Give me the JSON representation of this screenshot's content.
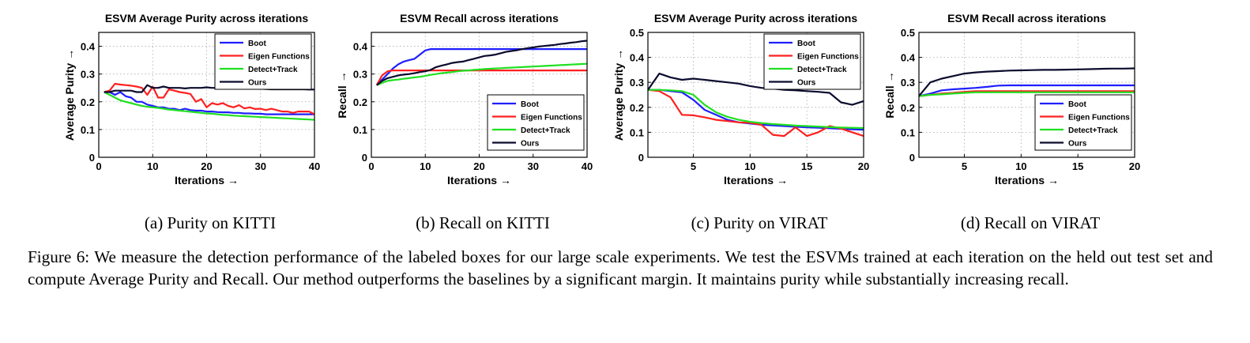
{
  "caption": "Figure 6: We measure the detection performance of the labeled boxes for our large scale experiments. We test the ESVMs trained at each iteration on the held out test set and compute Average Purity and Recall. Our method outperforms the baselines by a significant margin. It maintains purity while substantially increasing recall.",
  "colors": {
    "Boot": "#1f1fff",
    "Eigen Functions": "#ff2020",
    "Detect+Track": "#20e020",
    "Ours": "#0b0b2e"
  },
  "chart_data": [
    {
      "type": "line",
      "title": "ESVM Average Purity across iterations",
      "subcaption": "(a) Purity on KITTI",
      "xlabel": "Iterations →",
      "ylabel": "Average Purity →",
      "xlim": [
        0,
        40
      ],
      "ylim": [
        0,
        0.45
      ],
      "xticks": [
        0,
        10,
        20,
        30,
        40
      ],
      "yticks": [
        0,
        0.1,
        0.2,
        0.3,
        0.4
      ],
      "xtick_labels": [
        "0",
        "10",
        "20",
        "30",
        "40"
      ],
      "ytick_labels": [
        "0",
        "0.1",
        "0.2",
        "0.3",
        "0.4"
      ],
      "grid": true,
      "legend_position": "top-right",
      "x": [
        1,
        2,
        3,
        4,
        5,
        6,
        7,
        8,
        9,
        10,
        11,
        12,
        13,
        14,
        15,
        16,
        17,
        18,
        19,
        20,
        21,
        22,
        23,
        24,
        25,
        26,
        27,
        28,
        29,
        30,
        31,
        32,
        33,
        34,
        35,
        36,
        37,
        38,
        39,
        40
      ],
      "series": [
        {
          "name": "Boot",
          "values": [
            0.235,
            0.235,
            0.225,
            0.235,
            0.22,
            0.215,
            0.2,
            0.2,
            0.19,
            0.185,
            0.18,
            0.18,
            0.175,
            0.175,
            0.17,
            0.175,
            0.17,
            0.168,
            0.168,
            0.165,
            0.165,
            0.163,
            0.162,
            0.162,
            0.16,
            0.16,
            0.158,
            0.158,
            0.157,
            0.157,
            0.155,
            0.155,
            0.155,
            0.155,
            0.155,
            0.155,
            0.155,
            0.155,
            0.155,
            0.155
          ]
        },
        {
          "name": "Eigen Functions",
          "values": [
            0.235,
            0.24,
            0.265,
            0.262,
            0.26,
            0.258,
            0.255,
            0.25,
            0.225,
            0.255,
            0.215,
            0.215,
            0.245,
            0.24,
            0.235,
            0.232,
            0.228,
            0.2,
            0.21,
            0.18,
            0.195,
            0.19,
            0.195,
            0.185,
            0.18,
            0.188,
            0.176,
            0.18,
            0.174,
            0.175,
            0.17,
            0.175,
            0.17,
            0.165,
            0.165,
            0.16,
            0.165,
            0.165,
            0.165,
            0.155
          ]
        },
        {
          "name": "Detect+Track",
          "values": [
            0.235,
            0.225,
            0.215,
            0.205,
            0.2,
            0.195,
            0.19,
            0.185,
            0.182,
            0.18,
            0.178,
            0.175,
            0.172,
            0.17,
            0.168,
            0.166,
            0.164,
            0.162,
            0.16,
            0.158,
            0.157,
            0.155,
            0.153,
            0.152,
            0.15,
            0.149,
            0.148,
            0.147,
            0.146,
            0.145,
            0.144,
            0.143,
            0.142,
            0.141,
            0.14,
            0.139,
            0.138,
            0.137,
            0.136,
            0.135
          ]
        },
        {
          "name": "Ours",
          "values": [
            0.235,
            0.235,
            0.24,
            0.24,
            0.24,
            0.24,
            0.235,
            0.235,
            0.26,
            0.25,
            0.25,
            0.255,
            0.25,
            0.25,
            0.25,
            0.248,
            0.25,
            0.25,
            0.25,
            0.252,
            0.25,
            0.25,
            0.25,
            0.248,
            0.248,
            0.248,
            0.248,
            0.248,
            0.247,
            0.247,
            0.246,
            0.245,
            0.245,
            0.245,
            0.245,
            0.245,
            0.245,
            0.245,
            0.244,
            0.244
          ]
        }
      ]
    },
    {
      "type": "line",
      "title": "ESVM Recall across iterations",
      "subcaption": "(b) Recall on KITTI",
      "xlabel": "Iterations →",
      "ylabel": "Recall →",
      "xlim": [
        0,
        40
      ],
      "ylim": [
        0,
        0.45
      ],
      "xticks": [
        0,
        10,
        20,
        30,
        40
      ],
      "yticks": [
        0,
        0.1,
        0.2,
        0.3,
        0.4
      ],
      "xtick_labels": [
        "0",
        "10",
        "20",
        "30",
        "40"
      ],
      "ytick_labels": [
        "0",
        "0.1",
        "0.2",
        "0.3",
        "0.4"
      ],
      "grid": true,
      "legend_position": "bottom-right",
      "x": [
        1,
        2,
        3,
        4,
        5,
        6,
        7,
        8,
        9,
        10,
        11,
        12,
        13,
        14,
        15,
        16,
        17,
        18,
        19,
        20,
        21,
        22,
        23,
        24,
        25,
        26,
        27,
        28,
        29,
        30,
        31,
        32,
        33,
        34,
        35,
        36,
        37,
        38,
        39,
        40
      ],
      "series": [
        {
          "name": "Boot",
          "values": [
            0.26,
            0.28,
            0.3,
            0.32,
            0.335,
            0.345,
            0.35,
            0.355,
            0.37,
            0.385,
            0.39,
            0.39,
            0.39,
            0.39,
            0.39,
            0.39,
            0.39,
            0.39,
            0.39,
            0.39,
            0.39,
            0.39,
            0.39,
            0.39,
            0.39,
            0.39,
            0.39,
            0.39,
            0.39,
            0.39,
            0.39,
            0.39,
            0.39,
            0.39,
            0.39,
            0.39,
            0.39,
            0.39,
            0.39,
            0.39
          ]
        },
        {
          "name": "Eigen Functions",
          "values": [
            0.26,
            0.295,
            0.31,
            0.313,
            0.313,
            0.313,
            0.313,
            0.313,
            0.313,
            0.313,
            0.313,
            0.313,
            0.313,
            0.313,
            0.313,
            0.313,
            0.313,
            0.313,
            0.313,
            0.313,
            0.313,
            0.313,
            0.313,
            0.313,
            0.313,
            0.313,
            0.313,
            0.313,
            0.313,
            0.313,
            0.313,
            0.313,
            0.313,
            0.313,
            0.313,
            0.313,
            0.313,
            0.313,
            0.313,
            0.313
          ]
        },
        {
          "name": "Detect+Track",
          "values": [
            0.26,
            0.268,
            0.275,
            0.278,
            0.28,
            0.283,
            0.285,
            0.288,
            0.29,
            0.293,
            0.297,
            0.3,
            0.303,
            0.305,
            0.307,
            0.31,
            0.312,
            0.313,
            0.315,
            0.316,
            0.318,
            0.319,
            0.32,
            0.321,
            0.322,
            0.323,
            0.324,
            0.325,
            0.326,
            0.327,
            0.328,
            0.329,
            0.33,
            0.331,
            0.332,
            0.333,
            0.334,
            0.335,
            0.336,
            0.337
          ]
        },
        {
          "name": "Ours",
          "values": [
            0.26,
            0.275,
            0.285,
            0.29,
            0.295,
            0.298,
            0.3,
            0.303,
            0.307,
            0.31,
            0.315,
            0.325,
            0.33,
            0.335,
            0.34,
            0.343,
            0.345,
            0.35,
            0.355,
            0.36,
            0.365,
            0.367,
            0.37,
            0.375,
            0.38,
            0.383,
            0.386,
            0.39,
            0.393,
            0.396,
            0.399,
            0.401,
            0.403,
            0.405,
            0.408,
            0.41,
            0.413,
            0.415,
            0.418,
            0.42
          ]
        }
      ]
    },
    {
      "type": "line",
      "title": "ESVM Average Purity across iterations",
      "subcaption": "(c) Purity on VIRAT",
      "xlabel": "Iterations →",
      "ylabel": "Average Purity →",
      "xlim": [
        1,
        20
      ],
      "ylim": [
        0,
        0.5
      ],
      "xticks": [
        5,
        10,
        15,
        20
      ],
      "yticks": [
        0,
        0.1,
        0.2,
        0.3,
        0.4,
        0.5
      ],
      "xtick_labels": [
        "5",
        "10",
        "15",
        "20"
      ],
      "ytick_labels": [
        "0",
        "0.1",
        "0.2",
        "0.3",
        "0.4",
        "0.5"
      ],
      "grid": true,
      "legend_position": "top-right",
      "x": [
        1,
        2,
        3,
        4,
        5,
        6,
        7,
        8,
        9,
        10,
        11,
        12,
        13,
        14,
        15,
        16,
        17,
        18,
        19,
        20
      ],
      "series": [
        {
          "name": "Boot",
          "values": [
            0.27,
            0.27,
            0.265,
            0.26,
            0.23,
            0.19,
            0.17,
            0.15,
            0.14,
            0.135,
            0.13,
            0.128,
            0.125,
            0.122,
            0.12,
            0.118,
            0.116,
            0.114,
            0.112,
            0.11
          ]
        },
        {
          "name": "Eigen Functions",
          "values": [
            0.27,
            0.265,
            0.24,
            0.17,
            0.168,
            0.16,
            0.15,
            0.145,
            0.14,
            0.138,
            0.13,
            0.09,
            0.085,
            0.12,
            0.085,
            0.1,
            0.125,
            0.115,
            0.1,
            0.085
          ]
        },
        {
          "name": "Detect+Track",
          "values": [
            0.27,
            0.27,
            0.268,
            0.265,
            0.25,
            0.21,
            0.18,
            0.162,
            0.15,
            0.142,
            0.137,
            0.133,
            0.13,
            0.127,
            0.125,
            0.123,
            0.121,
            0.119,
            0.118,
            0.117
          ]
        },
        {
          "name": "Ours",
          "values": [
            0.27,
            0.335,
            0.32,
            0.31,
            0.315,
            0.31,
            0.305,
            0.3,
            0.295,
            0.285,
            0.278,
            0.275,
            0.27,
            0.268,
            0.265,
            0.262,
            0.258,
            0.22,
            0.21,
            0.225
          ]
        }
      ]
    },
    {
      "type": "line",
      "title": "ESVM Recall across iterations",
      "subcaption": "(d) Recall on VIRAT",
      "xlabel": "Iterations →",
      "ylabel": "Recall →",
      "xlim": [
        1,
        20
      ],
      "ylim": [
        0,
        0.5
      ],
      "xticks": [
        5,
        10,
        15,
        20
      ],
      "yticks": [
        0,
        0.1,
        0.2,
        0.3,
        0.4,
        0.5
      ],
      "xtick_labels": [
        "5",
        "10",
        "15",
        "20"
      ],
      "ytick_labels": [
        "0",
        "0.1",
        "0.2",
        "0.3",
        "0.4",
        "0.5"
      ],
      "grid": true,
      "legend_position": "bottom-right",
      "x": [
        1,
        2,
        3,
        4,
        5,
        6,
        7,
        8,
        9,
        10,
        11,
        12,
        13,
        14,
        15,
        16,
        17,
        18,
        19,
        20
      ],
      "series": [
        {
          "name": "Boot",
          "values": [
            0.245,
            0.255,
            0.268,
            0.272,
            0.275,
            0.278,
            0.282,
            0.287,
            0.288,
            0.288,
            0.288,
            0.288,
            0.288,
            0.288,
            0.288,
            0.288,
            0.288,
            0.288,
            0.288,
            0.288
          ]
        },
        {
          "name": "Eigen Functions",
          "values": [
            0.245,
            0.25,
            0.255,
            0.258,
            0.262,
            0.265,
            0.265,
            0.265,
            0.265,
            0.265,
            0.265,
            0.265,
            0.265,
            0.265,
            0.265,
            0.265,
            0.265,
            0.265,
            0.265,
            0.265
          ]
        },
        {
          "name": "Detect+Track",
          "values": [
            0.245,
            0.25,
            0.252,
            0.255,
            0.258,
            0.26,
            0.26,
            0.26,
            0.26,
            0.26,
            0.26,
            0.26,
            0.26,
            0.26,
            0.26,
            0.26,
            0.26,
            0.26,
            0.26,
            0.26
          ]
        },
        {
          "name": "Ours",
          "values": [
            0.245,
            0.3,
            0.315,
            0.325,
            0.335,
            0.34,
            0.343,
            0.345,
            0.347,
            0.348,
            0.349,
            0.35,
            0.35,
            0.351,
            0.352,
            0.353,
            0.354,
            0.355,
            0.355,
            0.356
          ]
        }
      ]
    }
  ]
}
